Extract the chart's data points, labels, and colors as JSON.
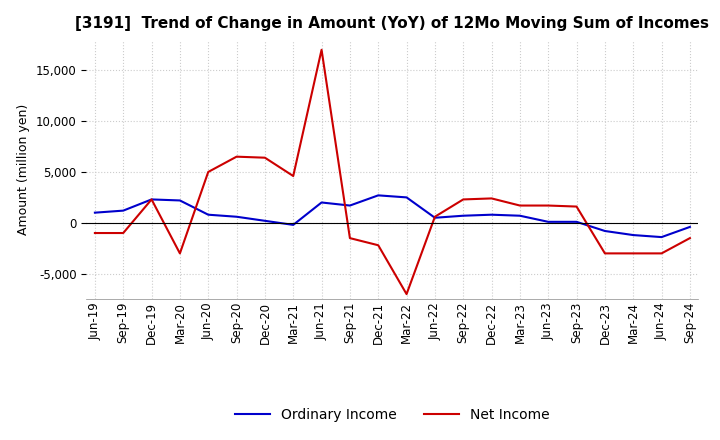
{
  "title": "[3191]  Trend of Change in Amount (YoY) of 12Mo Moving Sum of Incomes",
  "ylabel": "Amount (million yen)",
  "ylim": [
    -7500,
    18000
  ],
  "yticks": [
    -5000,
    0,
    5000,
    10000,
    15000
  ],
  "x_labels": [
    "Jun-19",
    "Sep-19",
    "Dec-19",
    "Mar-20",
    "Jun-20",
    "Sep-20",
    "Dec-20",
    "Mar-21",
    "Jun-21",
    "Sep-21",
    "Dec-21",
    "Mar-22",
    "Jun-22",
    "Sep-22",
    "Dec-22",
    "Mar-23",
    "Jun-23",
    "Sep-23",
    "Dec-23",
    "Mar-24",
    "Jun-24",
    "Sep-24"
  ],
  "ordinary_income": [
    1000,
    1200,
    2300,
    2200,
    800,
    600,
    200,
    -200,
    2000,
    1700,
    2700,
    2500,
    500,
    700,
    800,
    700,
    100,
    100,
    -800,
    -1200,
    -1400,
    -400
  ],
  "net_income": [
    -1000,
    -1000,
    2300,
    -3000,
    5000,
    6500,
    6400,
    4600,
    17000,
    -1500,
    -2200,
    -7000,
    600,
    2300,
    2400,
    1700,
    1700,
    1600,
    -3000,
    -3000,
    -3000,
    -1500
  ],
  "ordinary_color": "#0000cc",
  "net_color": "#cc0000",
  "background_color": "#ffffff",
  "grid_color": "#cccccc",
  "title_fontsize": 11,
  "label_fontsize": 9,
  "tick_fontsize": 8.5,
  "legend_fontsize": 10
}
